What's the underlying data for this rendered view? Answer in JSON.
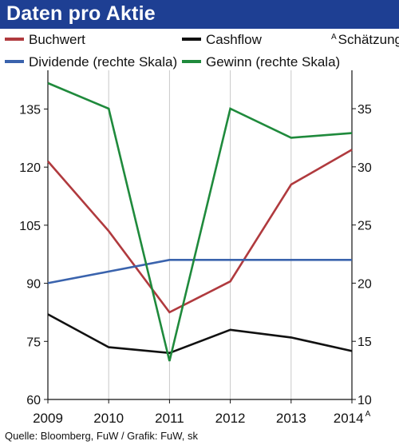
{
  "chart_data": {
    "type": "line",
    "title": "Daten pro Aktie",
    "estimate_note": "Schätzung",
    "estimate_marker": "A",
    "x": [
      "2009",
      "2010",
      "2011",
      "2012",
      "2013",
      "2014"
    ],
    "x_estimate_index": 5,
    "left_axis": {
      "ticks": [
        60,
        75,
        90,
        105,
        120,
        135
      ],
      "range": [
        60,
        145
      ]
    },
    "right_axis": {
      "ticks": [
        10,
        15,
        20,
        25,
        30,
        35
      ],
      "range": [
        10,
        38.3
      ]
    },
    "series": [
      {
        "name": "Buchwert",
        "axis": "left",
        "color": "#b03a3e",
        "values": [
          121.5,
          103.5,
          82.5,
          90.5,
          115.5,
          124.5
        ]
      },
      {
        "name": "Cashflow",
        "axis": "left",
        "color": "#111111",
        "values": [
          82,
          73.5,
          72,
          78,
          76,
          72.5
        ]
      },
      {
        "name": "Dividende (rechte Skala)",
        "axis": "right",
        "color": "#3a63ad",
        "values": [
          20,
          21,
          22,
          22,
          22,
          22
        ]
      },
      {
        "name": "Gewinn (rechte Skala)",
        "axis": "right",
        "color": "#1f8a3c",
        "values": [
          37.2,
          35,
          13.3,
          35,
          32.5,
          32.9
        ]
      }
    ],
    "grid": "vertical",
    "legend_placement": "top"
  },
  "source": "Quelle: Bloomberg, FuW / Grafik: FuW, sk"
}
